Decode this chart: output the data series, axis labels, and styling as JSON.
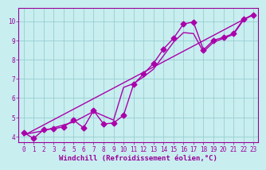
{
  "xlabel": "Windchill (Refroidissement éolien,°C)",
  "bg_color": "#c8eef0",
  "line_color": "#aa00aa",
  "grid_color": "#90c8cc",
  "xlim": [
    -0.5,
    23.5
  ],
  "ylim": [
    3.7,
    10.7
  ],
  "xticks": [
    0,
    1,
    2,
    3,
    4,
    5,
    6,
    7,
    8,
    9,
    10,
    11,
    12,
    13,
    14,
    15,
    16,
    17,
    18,
    19,
    20,
    21,
    22,
    23
  ],
  "yticks": [
    4,
    5,
    6,
    7,
    8,
    9,
    10
  ],
  "line1_x": [
    0,
    1,
    2,
    3,
    4,
    5,
    6,
    7,
    8,
    9,
    10,
    11,
    12,
    13,
    14,
    15,
    16,
    17,
    18,
    19,
    20,
    21,
    22,
    23
  ],
  "line1_y": [
    4.2,
    3.9,
    4.35,
    4.4,
    4.5,
    4.85,
    4.45,
    5.35,
    4.65,
    4.7,
    5.1,
    6.7,
    7.25,
    7.8,
    8.55,
    9.1,
    9.85,
    9.95,
    8.5,
    9.0,
    9.15,
    9.35,
    10.1,
    10.3
  ],
  "line2_x": [
    0,
    23
  ],
  "line2_y": [
    4.05,
    10.35
  ],
  "line3_x": [
    0,
    2,
    5,
    7,
    9,
    10,
    11,
    12,
    13,
    14,
    15,
    16,
    17,
    18,
    19,
    20,
    21,
    22,
    23
  ],
  "line3_y": [
    4.1,
    4.3,
    4.75,
    5.3,
    4.85,
    6.55,
    6.75,
    7.1,
    7.5,
    8.2,
    8.9,
    9.4,
    9.35,
    8.4,
    8.9,
    9.1,
    9.3,
    10.05,
    10.35
  ],
  "markersize": 3.5,
  "linewidth": 1.0,
  "tick_fontsize": 5.5,
  "label_fontsize": 6.5,
  "label_color": "#990099",
  "tick_color": "#990099",
  "axis_color": "#990099"
}
